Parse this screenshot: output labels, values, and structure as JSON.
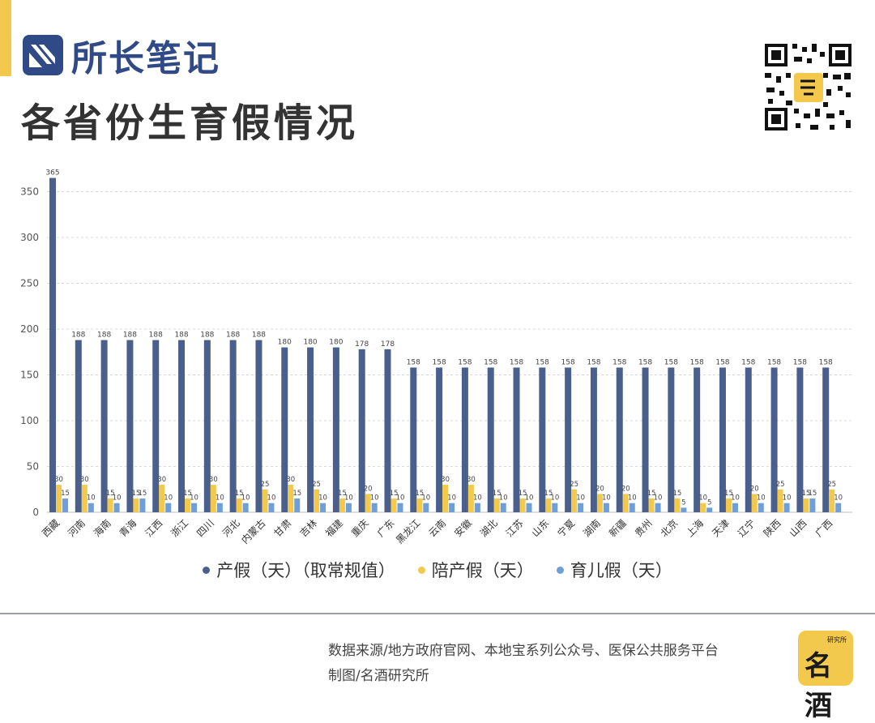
{
  "brand": {
    "name": "所长笔记"
  },
  "title": "各省份生育假情况",
  "badge": {
    "small_text": "研究所",
    "big_text": "名酒"
  },
  "footer": {
    "source": "数据来源/地方政府官网、本地宝系列公众号、医保公共服务平台",
    "credit": "制图/名酒研究所"
  },
  "colors": {
    "maternity": "#4a5f8c",
    "paternity": "#f2c94c",
    "childcare": "#6f9fd8",
    "accent": "#f2c94c",
    "brand": "#2f4a86"
  },
  "chart_data": {
    "type": "bar",
    "title": "各省份生育假情况",
    "ylim": [
      0,
      365
    ],
    "yticks": [
      0,
      50,
      100,
      150,
      200,
      250,
      300,
      350
    ],
    "grid": true,
    "legend_position": "bottom",
    "categories": [
      "西藏",
      "河南",
      "海南",
      "青海",
      "江西",
      "浙江",
      "四川",
      "河北",
      "内蒙古",
      "甘肃",
      "吉林",
      "福建",
      "重庆",
      "广东",
      "黑龙江",
      "云南",
      "安徽",
      "湖北",
      "江苏",
      "山东",
      "宁夏",
      "湖南",
      "新疆",
      "贵州",
      "北京",
      "上海",
      "天津",
      "辽宁",
      "陕西",
      "山西",
      "广西"
    ],
    "series": [
      {
        "name": "产假（天）（取常规值）",
        "values": [
          365,
          188,
          188,
          188,
          188,
          188,
          188,
          188,
          188,
          180,
          180,
          180,
          178,
          178,
          158,
          158,
          158,
          158,
          158,
          158,
          158,
          158,
          158,
          158,
          158,
          158,
          158,
          158,
          158,
          158,
          158
        ]
      },
      {
        "name": "陪产假（天）",
        "values": [
          30,
          30,
          15,
          15,
          30,
          15,
          30,
          15,
          25,
          30,
          25,
          15,
          20,
          15,
          15,
          30,
          30,
          15,
          15,
          15,
          25,
          20,
          20,
          15,
          15,
          10,
          15,
          20,
          25,
          15,
          25
        ]
      },
      {
        "name": "育儿假（天）",
        "values": [
          15,
          10,
          10,
          15,
          10,
          10,
          10,
          10,
          10,
          15,
          10,
          10,
          10,
          10,
          10,
          10,
          10,
          10,
          10,
          10,
          10,
          10,
          10,
          10,
          5,
          5,
          10,
          10,
          10,
          15,
          10
        ]
      }
    ]
  }
}
